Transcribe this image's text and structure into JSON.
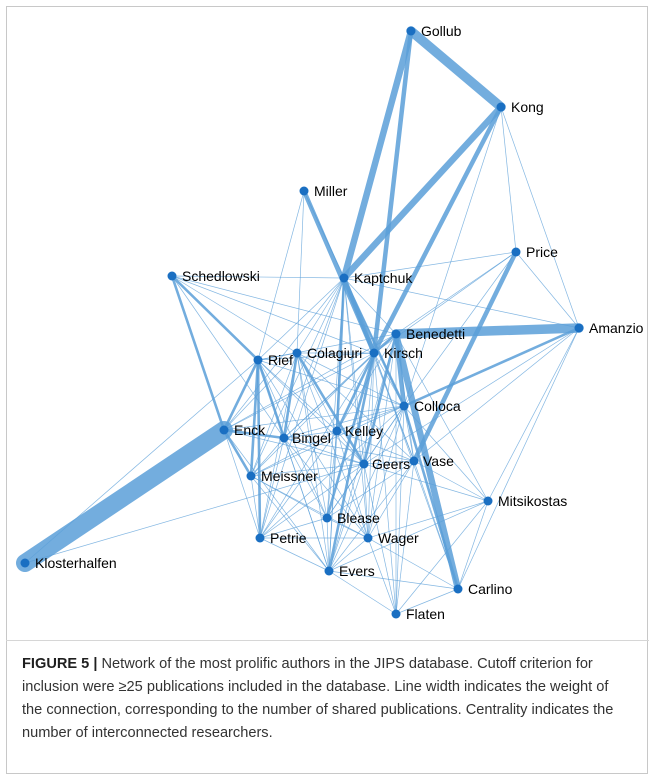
{
  "figure": {
    "label": "FIGURE 5 |",
    "caption": " Network of the most prolific authors in the JIPS database. Cutoff criterion for inclusion were ≥25 publications included in the database. Line width indicates the weight of the connection, corresponding to the number of shared publications. Centrality indicates the number of interconnected researchers."
  },
  "colors": {
    "node": "#1a6fc2",
    "edge": "#5b9fd8"
  },
  "nodes": [
    {
      "id": "Gollub",
      "label": "Gollub"
    },
    {
      "id": "Kong",
      "label": "Kong"
    },
    {
      "id": "Miller",
      "label": "Miller"
    },
    {
      "id": "Price",
      "label": "Price"
    },
    {
      "id": "Schedlowski",
      "label": "Schedlowski"
    },
    {
      "id": "Kaptchuk",
      "label": "Kaptchuk"
    },
    {
      "id": "Amanzio",
      "label": "Amanzio"
    },
    {
      "id": "Benedetti",
      "label": "Benedetti"
    },
    {
      "id": "Rief",
      "label": "Rief"
    },
    {
      "id": "Colagiuri",
      "label": "Colagiuri"
    },
    {
      "id": "Kirsch",
      "label": "Kirsch"
    },
    {
      "id": "Colloca",
      "label": "Colloca"
    },
    {
      "id": "Enck",
      "label": "Enck"
    },
    {
      "id": "Bingel",
      "label": "Bingel"
    },
    {
      "id": "Kelley",
      "label": "Kelley"
    },
    {
      "id": "Geers",
      "label": "Geers"
    },
    {
      "id": "Vase",
      "label": "Vase"
    },
    {
      "id": "Meissner",
      "label": "Meissner"
    },
    {
      "id": "Mitsikostas",
      "label": "Mitsikostas"
    },
    {
      "id": "Blease",
      "label": "Blease"
    },
    {
      "id": "Petrie",
      "label": "Petrie"
    },
    {
      "id": "Wager",
      "label": "Wager"
    },
    {
      "id": "Klosterhalfen",
      "label": "Klosterhalfen"
    },
    {
      "id": "Evers",
      "label": "Evers"
    },
    {
      "id": "Carlino",
      "label": "Carlino"
    },
    {
      "id": "Flaten",
      "label": "Flaten"
    }
  ],
  "edges": [
    {
      "source": "Enck",
      "target": "Klosterhalfen",
      "weight": 9
    },
    {
      "source": "Gollub",
      "target": "Kong",
      "weight": 6
    },
    {
      "source": "Benedetti",
      "target": "Amanzio",
      "weight": 6
    },
    {
      "source": "Gollub",
      "target": "Kaptchuk",
      "weight": 4
    },
    {
      "source": "Kong",
      "target": "Kaptchuk",
      "weight": 4
    },
    {
      "source": "Benedetti",
      "target": "Carlino",
      "weight": 4
    },
    {
      "source": "Gollub",
      "target": "Kirsch",
      "weight": 3
    },
    {
      "source": "Kong",
      "target": "Kirsch",
      "weight": 3
    },
    {
      "source": "Miller",
      "target": "Kirsch",
      "weight": 3
    },
    {
      "source": "Price",
      "target": "Vase",
      "weight": 3
    },
    {
      "source": "Benedetti",
      "target": "Colloca",
      "weight": 3
    },
    {
      "source": "Kaptchuk",
      "target": "Kirsch",
      "weight": 3
    },
    {
      "source": "Kaptchuk",
      "target": "Kelley",
      "weight": 2
    },
    {
      "source": "Benedetti",
      "target": "Geers",
      "weight": 2
    },
    {
      "source": "Colloca",
      "target": "Carlino",
      "weight": 2
    },
    {
      "source": "Amanzio",
      "target": "Colloca",
      "weight": 2
    },
    {
      "source": "Enck",
      "target": "Rief",
      "weight": 2
    },
    {
      "source": "Enck",
      "target": "Schedlowski",
      "weight": 2
    },
    {
      "source": "Rief",
      "target": "Schedlowski",
      "weight": 2
    },
    {
      "source": "Enck",
      "target": "Bingel",
      "weight": 2
    },
    {
      "source": "Enck",
      "target": "Meissner",
      "weight": 2
    },
    {
      "source": "Rief",
      "target": "Meissner",
      "weight": 2
    },
    {
      "source": "Rief",
      "target": "Bingel",
      "weight": 2
    },
    {
      "source": "Colloca",
      "target": "Kaptchuk",
      "weight": 2
    },
    {
      "source": "Kirsch",
      "target": "Kelley",
      "weight": 2
    },
    {
      "source": "Benedetti",
      "target": "Kirsch",
      "weight": 2
    },
    {
      "source": "Colagiuri",
      "target": "Bingel",
      "weight": 2
    },
    {
      "source": "Colagiuri",
      "target": "Geers",
      "weight": 2
    },
    {
      "source": "Petrie",
      "target": "Rief",
      "weight": 2
    },
    {
      "source": "Evers",
      "target": "Kirsch",
      "weight": 2
    },
    {
      "source": "Blease",
      "target": "Kirsch",
      "weight": 2
    },
    {
      "source": "Enck",
      "target": "Colagiuri",
      "weight": 1
    },
    {
      "source": "Enck",
      "target": "Evers",
      "weight": 1
    },
    {
      "source": "Enck",
      "target": "Petrie",
      "weight": 1
    },
    {
      "source": "Enck",
      "target": "Kirsch",
      "weight": 1
    },
    {
      "source": "Enck",
      "target": "Kaptchuk",
      "weight": 1
    },
    {
      "source": "Enck",
      "target": "Colloca",
      "weight": 1
    },
    {
      "source": "Enck",
      "target": "Benedetti",
      "weight": 1
    },
    {
      "source": "Enck",
      "target": "Geers",
      "weight": 1
    },
    {
      "source": "Schedlowski",
      "target": "Kaptchuk",
      "weight": 1
    },
    {
      "source": "Schedlowski",
      "target": "Colagiuri",
      "weight": 1
    },
    {
      "source": "Schedlowski",
      "target": "Bingel",
      "weight": 1
    },
    {
      "source": "Schedlowski",
      "target": "Benedetti",
      "weight": 1
    },
    {
      "source": "Schedlowski",
      "target": "Kirsch",
      "weight": 1
    },
    {
      "source": "Miller",
      "target": "Kaptchuk",
      "weight": 1
    },
    {
      "source": "Miller",
      "target": "Colloca",
      "weight": 1
    },
    {
      "source": "Miller",
      "target": "Rief",
      "weight": 1
    },
    {
      "source": "Miller",
      "target": "Colagiuri",
      "weight": 1
    },
    {
      "source": "Price",
      "target": "Kaptchuk",
      "weight": 1
    },
    {
      "source": "Price",
      "target": "Benedetti",
      "weight": 1
    },
    {
      "source": "Price",
      "target": "Colloca",
      "weight": 1
    },
    {
      "source": "Price",
      "target": "Amanzio",
      "weight": 1
    },
    {
      "source": "Price",
      "target": "Kirsch",
      "weight": 1
    },
    {
      "source": "Kong",
      "target": "Price",
      "weight": 1
    },
    {
      "source": "Kong",
      "target": "Amanzio",
      "weight": 1
    },
    {
      "source": "Kong",
      "target": "Colloca",
      "weight": 1
    },
    {
      "source": "Amanzio",
      "target": "Vase",
      "weight": 1
    },
    {
      "source": "Amanzio",
      "target": "Mitsikostas",
      "weight": 1
    },
    {
      "source": "Amanzio",
      "target": "Carlino",
      "weight": 1
    },
    {
      "source": "Amanzio",
      "target": "Kaptchuk",
      "weight": 1
    },
    {
      "source": "Amanzio",
      "target": "Geers",
      "weight": 1
    },
    {
      "source": "Kaptchuk",
      "target": "Rief",
      "weight": 1
    },
    {
      "source": "Kaptchuk",
      "target": "Colagiuri",
      "weight": 1
    },
    {
      "source": "Kaptchuk",
      "target": "Bingel",
      "weight": 1
    },
    {
      "source": "Kaptchuk",
      "target": "Benedetti",
      "weight": 1
    },
    {
      "source": "Kaptchuk",
      "target": "Geers",
      "weight": 1
    },
    {
      "source": "Kaptchuk",
      "target": "Vase",
      "weight": 1
    },
    {
      "source": "Kaptchuk",
      "target": "Meissner",
      "weight": 1
    },
    {
      "source": "Kaptchuk",
      "target": "Blease",
      "weight": 1
    },
    {
      "source": "Kaptchuk",
      "target": "Petrie",
      "weight": 1
    },
    {
      "source": "Kaptchuk",
      "target": "Wager",
      "weight": 1
    },
    {
      "source": "Kaptchuk",
      "target": "Evers",
      "weight": 1
    },
    {
      "source": "Rief",
      "target": "Colagiuri",
      "weight": 1
    },
    {
      "source": "Rief",
      "target": "Kirsch",
      "weight": 1
    },
    {
      "source": "Rief",
      "target": "Colloca",
      "weight": 1
    },
    {
      "source": "Rief",
      "target": "Kelley",
      "weight": 1
    },
    {
      "source": "Rief",
      "target": "Geers",
      "weight": 1
    },
    {
      "source": "Rief",
      "target": "Blease",
      "weight": 1
    },
    {
      "source": "Rief",
      "target": "Evers",
      "weight": 1
    },
    {
      "source": "Rief",
      "target": "Wager",
      "weight": 1
    },
    {
      "source": "Colagiuri",
      "target": "Kirsch",
      "weight": 1
    },
    {
      "source": "Colagiuri",
      "target": "Colloca",
      "weight": 1
    },
    {
      "source": "Colagiuri",
      "target": "Kelley",
      "weight": 1
    },
    {
      "source": "Colagiuri",
      "target": "Meissner",
      "weight": 1
    },
    {
      "source": "Colagiuri",
      "target": "Petrie",
      "weight": 1
    },
    {
      "source": "Colagiuri",
      "target": "Blease",
      "weight": 1
    },
    {
      "source": "Colagiuri",
      "target": "Evers",
      "weight": 1
    },
    {
      "source": "Colagiuri",
      "target": "Wager",
      "weight": 1
    },
    {
      "source": "Colagiuri",
      "target": "Vase",
      "weight": 1
    },
    {
      "source": "Kirsch",
      "target": "Colloca",
      "weight": 1
    },
    {
      "source": "Kirsch",
      "target": "Bingel",
      "weight": 1
    },
    {
      "source": "Kirsch",
      "target": "Geers",
      "weight": 1
    },
    {
      "source": "Kirsch",
      "target": "Vase",
      "weight": 1
    },
    {
      "source": "Kirsch",
      "target": "Meissner",
      "weight": 1
    },
    {
      "source": "Kirsch",
      "target": "Petrie",
      "weight": 1
    },
    {
      "source": "Kirsch",
      "target": "Wager",
      "weight": 1
    },
    {
      "source": "Kirsch",
      "target": "Carlino",
      "weight": 1
    },
    {
      "source": "Kirsch",
      "target": "Flaten",
      "weight": 1
    },
    {
      "source": "Benedetti",
      "target": "Vase",
      "weight": 1
    },
    {
      "source": "Benedetti",
      "target": "Bingel",
      "weight": 1
    },
    {
      "source": "Benedetti",
      "target": "Kelley",
      "weight": 1
    },
    {
      "source": "Benedetti",
      "target": "Mitsikostas",
      "weight": 1
    },
    {
      "source": "Benedetti",
      "target": "Wager",
      "weight": 1
    },
    {
      "source": "Benedetti",
      "target": "Flaten",
      "weight": 1
    },
    {
      "source": "Benedetti",
      "target": "Rief",
      "weight": 1
    },
    {
      "source": "Benedetti",
      "target": "Evers",
      "weight": 1
    },
    {
      "source": "Colloca",
      "target": "Vase",
      "weight": 1
    },
    {
      "source": "Colloca",
      "target": "Geers",
      "weight": 1
    },
    {
      "source": "Colloca",
      "target": "Bingel",
      "weight": 1
    },
    {
      "source": "Colloca",
      "target": "Kelley",
      "weight": 1
    },
    {
      "source": "Colloca",
      "target": "Mitsikostas",
      "weight": 1
    },
    {
      "source": "Colloca",
      "target": "Wager",
      "weight": 1
    },
    {
      "source": "Colloca",
      "target": "Flaten",
      "weight": 1
    },
    {
      "source": "Colloca",
      "target": "Evers",
      "weight": 1
    },
    {
      "source": "Colloca",
      "target": "Blease",
      "weight": 1
    },
    {
      "source": "Colloca",
      "target": "Meissner",
      "weight": 1
    },
    {
      "source": "Colloca",
      "target": "Petrie",
      "weight": 1
    },
    {
      "source": "Bingel",
      "target": "Kelley",
      "weight": 1
    },
    {
      "source": "Bingel",
      "target": "Geers",
      "weight": 1
    },
    {
      "source": "Bingel",
      "target": "Meissner",
      "weight": 1
    },
    {
      "source": "Bingel",
      "target": "Blease",
      "weight": 1
    },
    {
      "source": "Bingel",
      "target": "Petrie",
      "weight": 1
    },
    {
      "source": "Bingel",
      "target": "Wager",
      "weight": 1
    },
    {
      "source": "Bingel",
      "target": "Evers",
      "weight": 1
    },
    {
      "source": "Bingel",
      "target": "Vase",
      "weight": 1
    },
    {
      "source": "Kelley",
      "target": "Geers",
      "weight": 1
    },
    {
      "source": "Kelley",
      "target": "Vase",
      "weight": 1
    },
    {
      "source": "Kelley",
      "target": "Blease",
      "weight": 1
    },
    {
      "source": "Kelley",
      "target": "Meissner",
      "weight": 1
    },
    {
      "source": "Kelley",
      "target": "Evers",
      "weight": 1
    },
    {
      "source": "Kelley",
      "target": "Wager",
      "weight": 1
    },
    {
      "source": "Kelley",
      "target": "Petrie",
      "weight": 1
    },
    {
      "source": "Geers",
      "target": "Vase",
      "weight": 1
    },
    {
      "source": "Geers",
      "target": "Meissner",
      "weight": 1
    },
    {
      "source": "Geers",
      "target": "Blease",
      "weight": 1
    },
    {
      "source": "Geers",
      "target": "Wager",
      "weight": 1
    },
    {
      "source": "Geers",
      "target": "Evers",
      "weight": 1
    },
    {
      "source": "Geers",
      "target": "Petrie",
      "weight": 1
    },
    {
      "source": "Geers",
      "target": "Mitsikostas",
      "weight": 1
    },
    {
      "source": "Geers",
      "target": "Flaten",
      "weight": 1
    },
    {
      "source": "Vase",
      "target": "Mitsikostas",
      "weight": 1
    },
    {
      "source": "Vase",
      "target": "Carlino",
      "weight": 1
    },
    {
      "source": "Vase",
      "target": "Evers",
      "weight": 1
    },
    {
      "source": "Vase",
      "target": "Wager",
      "weight": 1
    },
    {
      "source": "Vase",
      "target": "Flaten",
      "weight": 1
    },
    {
      "source": "Vase",
      "target": "Blease",
      "weight": 1
    },
    {
      "source": "Meissner",
      "target": "Petrie",
      "weight": 1
    },
    {
      "source": "Meissner",
      "target": "Evers",
      "weight": 1
    },
    {
      "source": "Meissner",
      "target": "Blease",
      "weight": 1
    },
    {
      "source": "Meissner",
      "target": "Wager",
      "weight": 1
    },
    {
      "source": "Blease",
      "target": "Wager",
      "weight": 1
    },
    {
      "source": "Blease",
      "target": "Evers",
      "weight": 1
    },
    {
      "source": "Blease",
      "target": "Petrie",
      "weight": 1
    },
    {
      "source": "Petrie",
      "target": "Evers",
      "weight": 1
    },
    {
      "source": "Petrie",
      "target": "Wager",
      "weight": 1
    },
    {
      "source": "Wager",
      "target": "Evers",
      "weight": 1
    },
    {
      "source": "Wager",
      "target": "Flaten",
      "weight": 1
    },
    {
      "source": "Wager",
      "target": "Carlino",
      "weight": 1
    },
    {
      "source": "Wager",
      "target": "Mitsikostas",
      "weight": 1
    },
    {
      "source": "Evers",
      "target": "Flaten",
      "weight": 1
    },
    {
      "source": "Evers",
      "target": "Carlino",
      "weight": 1
    },
    {
      "source": "Evers",
      "target": "Mitsikostas",
      "weight": 1
    },
    {
      "source": "Flaten",
      "target": "Mitsikostas",
      "weight": 1
    },
    {
      "source": "Flaten",
      "target": "Carlino",
      "weight": 1
    },
    {
      "source": "Carlino",
      "target": "Mitsikostas",
      "weight": 1
    },
    {
      "source": "Klosterhalfen",
      "target": "Geers",
      "weight": 1
    },
    {
      "source": "Klosterhalfen",
      "target": "Rief",
      "weight": 1
    }
  ]
}
